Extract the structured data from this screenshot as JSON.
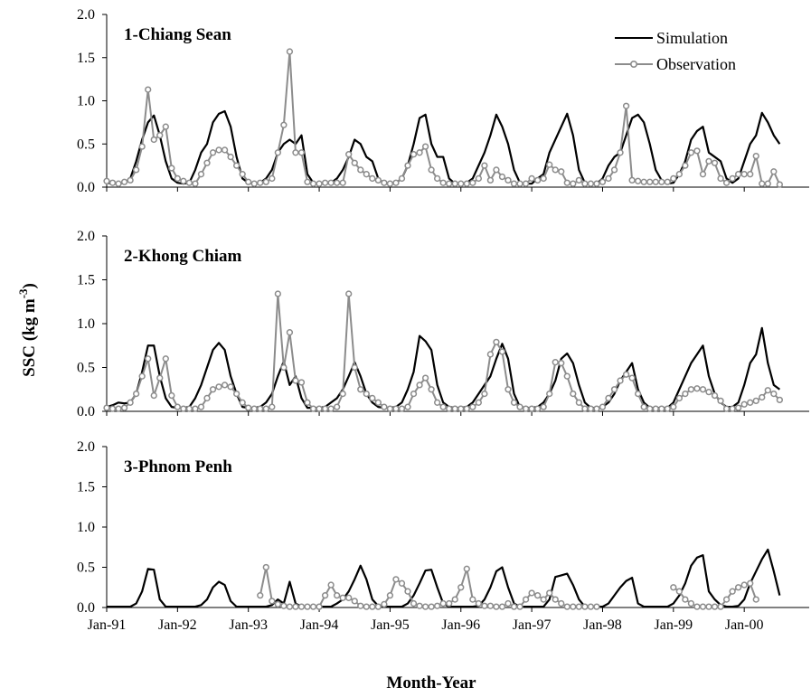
{
  "chart_data": {
    "type": "line",
    "xlabel": "Month-Year",
    "ylabel_main": "SSC (kg m",
    "ylabel_sup": "-3",
    "ylabel_close": ")",
    "ylim": [
      0,
      2.0
    ],
    "yticks": [
      "0.0",
      "0.5",
      "1.0",
      "1.5",
      "2.0"
    ],
    "ytick_values": [
      0,
      0.5,
      1.0,
      1.5,
      2.0
    ],
    "x_range_months": [
      "Jan-91",
      "Dec-00"
    ],
    "xtick_labels": [
      "Jan-91",
      "Jan-92",
      "Jan-93",
      "Jan-94",
      "Jan-95",
      "Jan-96",
      "Jan-97",
      "Jan-98",
      "Jan-99",
      "Jan-00"
    ],
    "legend": {
      "placement": "top-right",
      "entries": [
        "Simulation",
        "Observation"
      ]
    },
    "colors": {
      "simulation": "#000000",
      "observation": "#8c8c8c"
    },
    "panels": [
      {
        "title": "1-Chiang Sean",
        "series": [
          {
            "name": "Simulation",
            "start": "Jan-91",
            "values": [
              0.05,
              0.04,
              0.04,
              0.05,
              0.1,
              0.3,
              0.55,
              0.75,
              0.83,
              0.6,
              0.3,
              0.1,
              0.05,
              0.04,
              0.05,
              0.2,
              0.4,
              0.5,
              0.75,
              0.85,
              0.88,
              0.7,
              0.35,
              0.1,
              0.05,
              0.04,
              0.05,
              0.1,
              0.2,
              0.4,
              0.5,
              0.55,
              0.5,
              0.6,
              0.15,
              0.05,
              0.04,
              0.04,
              0.05,
              0.1,
              0.2,
              0.35,
              0.55,
              0.5,
              0.35,
              0.3,
              0.1,
              0.04,
              0.04,
              0.05,
              0.1,
              0.25,
              0.5,
              0.8,
              0.84,
              0.5,
              0.35,
              0.35,
              0.1,
              0.04,
              0.04,
              0.05,
              0.1,
              0.25,
              0.4,
              0.6,
              0.84,
              0.7,
              0.5,
              0.2,
              0.05,
              0.04,
              0.04,
              0.1,
              0.15,
              0.4,
              0.55,
              0.7,
              0.85,
              0.6,
              0.2,
              0.05,
              0.04,
              0.04,
              0.1,
              0.25,
              0.35,
              0.4,
              0.6,
              0.8,
              0.84,
              0.75,
              0.5,
              0.2,
              0.08,
              0.04,
              0.05,
              0.15,
              0.3,
              0.55,
              0.65,
              0.7,
              0.4,
              0.35,
              0.3,
              0.1,
              0.05,
              0.1,
              0.3,
              0.5,
              0.6,
              0.86,
              0.75,
              0.6,
              0.5
            ]
          },
          {
            "name": "Observation",
            "start": "Jan-91",
            "values": [
              0.07,
              0.05,
              0.04,
              0.06,
              0.08,
              0.2,
              0.47,
              1.13,
              0.55,
              0.6,
              0.7,
              0.22,
              0.1,
              0.07,
              0.05,
              0.04,
              0.15,
              0.28,
              0.4,
              0.43,
              0.43,
              0.35,
              0.25,
              0.15,
              0.06,
              0.04,
              0.05,
              0.06,
              0.1,
              0.4,
              0.72,
              1.57,
              0.4,
              0.4,
              0.06,
              0.04,
              0.04,
              0.05,
              0.05,
              0.05,
              0.05,
              0.38,
              0.28,
              0.2,
              0.15,
              0.1,
              0.08,
              0.05,
              0.04,
              0.05,
              0.1,
              0.25,
              0.38,
              0.4,
              0.47,
              0.2,
              0.1,
              0.05,
              0.04,
              0.04,
              0.04,
              0.04,
              0.05,
              0.1,
              0.25,
              0.08,
              0.2,
              0.12,
              0.08,
              0.04,
              0.04,
              0.04,
              0.1,
              0.08,
              0.1,
              0.26,
              0.2,
              0.18,
              0.05,
              0.04,
              0.08,
              0.04,
              0.04,
              0.04,
              0.06,
              0.1,
              0.2,
              0.4,
              0.94,
              0.08,
              0.07,
              0.06,
              0.06,
              0.06,
              0.06,
              0.06,
              0.1,
              0.15,
              0.25,
              0.4,
              0.42,
              0.15,
              0.3,
              0.28,
              0.1,
              0.05,
              0.1,
              0.15,
              0.15,
              0.15,
              0.36,
              0.04,
              0.04,
              0.18,
              0.03
            ]
          }
        ]
      },
      {
        "title": "2-Khong Chiam",
        "series": [
          {
            "name": "Simulation",
            "start": "Jan-91",
            "values": [
              0.05,
              0.07,
              0.1,
              0.09,
              0.1,
              0.2,
              0.45,
              0.75,
              0.75,
              0.4,
              0.15,
              0.05,
              0.04,
              0.04,
              0.05,
              0.15,
              0.3,
              0.5,
              0.7,
              0.78,
              0.7,
              0.4,
              0.2,
              0.05,
              0.04,
              0.04,
              0.05,
              0.1,
              0.2,
              0.4,
              0.57,
              0.3,
              0.4,
              0.15,
              0.04,
              0.04,
              0.04,
              0.05,
              0.1,
              0.15,
              0.25,
              0.4,
              0.56,
              0.4,
              0.2,
              0.1,
              0.05,
              0.04,
              0.04,
              0.05,
              0.1,
              0.25,
              0.45,
              0.86,
              0.8,
              0.7,
              0.3,
              0.1,
              0.05,
              0.04,
              0.04,
              0.05,
              0.1,
              0.2,
              0.3,
              0.4,
              0.6,
              0.77,
              0.6,
              0.2,
              0.05,
              0.04,
              0.04,
              0.05,
              0.1,
              0.2,
              0.35,
              0.6,
              0.66,
              0.55,
              0.3,
              0.1,
              0.04,
              0.04,
              0.05,
              0.1,
              0.2,
              0.35,
              0.45,
              0.55,
              0.25,
              0.1,
              0.04,
              0.04,
              0.04,
              0.04,
              0.1,
              0.25,
              0.4,
              0.55,
              0.65,
              0.75,
              0.4,
              0.2,
              0.1,
              0.05,
              0.05,
              0.1,
              0.3,
              0.55,
              0.65,
              0.95,
              0.55,
              0.3,
              0.25
            ]
          },
          {
            "name": "Observation",
            "start": "Jan-91",
            "values": [
              0.04,
              0.03,
              0.03,
              0.04,
              0.1,
              0.2,
              0.4,
              0.6,
              0.18,
              0.38,
              0.6,
              0.18,
              0.05,
              0.03,
              0.03,
              0.03,
              0.05,
              0.15,
              0.25,
              0.28,
              0.3,
              0.28,
              0.2,
              0.1,
              0.04,
              0.03,
              0.03,
              0.03,
              0.05,
              1.34,
              0.5,
              0.9,
              0.35,
              0.33,
              0.1,
              0.03,
              0.03,
              0.03,
              0.03,
              0.05,
              0.2,
              1.34,
              0.5,
              0.25,
              0.2,
              0.15,
              0.1,
              0.05,
              0.03,
              0.03,
              0.03,
              0.05,
              0.2,
              0.3,
              0.38,
              0.25,
              0.1,
              0.05,
              0.03,
              0.03,
              0.03,
              0.03,
              0.05,
              0.1,
              0.2,
              0.65,
              0.79,
              0.68,
              0.25,
              0.1,
              0.05,
              0.03,
              0.03,
              0.03,
              0.05,
              0.2,
              0.56,
              0.55,
              0.4,
              0.2,
              0.1,
              0.03,
              0.03,
              0.03,
              0.05,
              0.15,
              0.25,
              0.35,
              0.42,
              0.38,
              0.2,
              0.05,
              0.03,
              0.03,
              0.03,
              0.03,
              0.05,
              0.15,
              0.2,
              0.25,
              0.26,
              0.25,
              0.22,
              0.18,
              0.12,
              0.03,
              0.03,
              0.04,
              0.08,
              0.1,
              0.12,
              0.16,
              0.24,
              0.2,
              0.13
            ]
          }
        ]
      },
      {
        "title": "3-Phnom Penh",
        "series": [
          {
            "name": "Simulation",
            "start": "Jan-91",
            "values": [
              0.01,
              0.01,
              0.01,
              0.01,
              0.01,
              0.05,
              0.2,
              0.48,
              0.47,
              0.1,
              0.01,
              0.01,
              0.01,
              0.01,
              0.01,
              0.01,
              0.03,
              0.1,
              0.25,
              0.32,
              0.28,
              0.08,
              0.01,
              0.01,
              0.01,
              0.01,
              0.01,
              0.01,
              0.03,
              0.1,
              0.05,
              0.32,
              0.05,
              0.01,
              0.01,
              0.01,
              0.01,
              0.01,
              0.01,
              0.05,
              0.1,
              0.2,
              0.35,
              0.52,
              0.35,
              0.1,
              0.02,
              0.01,
              0.01,
              0.01,
              0.01,
              0.05,
              0.15,
              0.3,
              0.46,
              0.47,
              0.25,
              0.05,
              0.01,
              0.01,
              0.01,
              0.01,
              0.01,
              0.02,
              0.1,
              0.25,
              0.45,
              0.5,
              0.25,
              0.05,
              0.01,
              0.01,
              0.01,
              0.01,
              0.01,
              0.1,
              0.38,
              0.4,
              0.42,
              0.28,
              0.1,
              0.01,
              0.01,
              0.01,
              0.01,
              0.05,
              0.15,
              0.25,
              0.33,
              0.37,
              0.05,
              0.01,
              0.01,
              0.01,
              0.01,
              0.01,
              0.05,
              0.15,
              0.3,
              0.52,
              0.62,
              0.65,
              0.2,
              0.1,
              0.03,
              0.01,
              0.01,
              0.02,
              0.1,
              0.3,
              0.45,
              0.6,
              0.72,
              0.45,
              0.15
            ]
          },
          {
            "name": "Observation",
            "start": "Mar-93",
            "values": [
              0.15,
              0.5,
              0.08,
              0.04,
              0.02,
              0.01,
              0.01,
              0.01,
              0.01,
              0.01,
              0.01,
              0.15,
              0.28,
              0.15,
              0.12,
              0.12,
              0.08,
              0.02,
              0.01,
              0.01,
              0.01,
              0.04,
              0.15,
              0.35,
              0.3,
              0.2,
              0.05,
              0.02,
              0.01,
              0.01,
              0.02,
              0.05,
              0.05,
              0.1,
              0.25,
              0.48,
              0.1,
              0.05,
              0.02,
              0.02,
              0.01,
              0.01,
              0.05,
              0.01,
              0.01,
              0.1,
              0.18,
              0.15,
              0.1,
              0.18,
              0.1,
              0.05,
              0.01,
              0.01,
              0.01,
              0.01,
              0.01,
              0.01,
              null,
              null,
              null,
              null,
              null,
              null,
              null,
              null,
              null,
              null,
              null,
              null,
              0.25,
              0.2,
              0.1,
              0.05,
              0.01,
              0.01,
              0.01,
              0.01,
              0.01,
              0.1,
              0.2,
              0.25,
              0.28,
              0.3,
              0.1
            ]
          }
        ]
      }
    ]
  }
}
